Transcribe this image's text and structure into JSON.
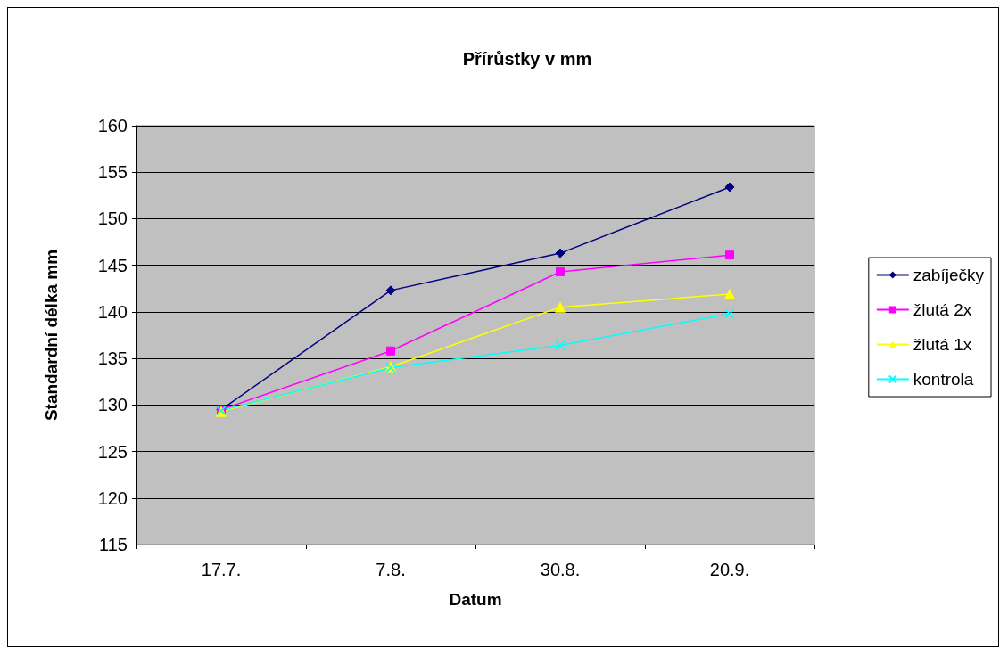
{
  "chart_data": {
    "type": "line",
    "title": "Přírůstky v mm",
    "xlabel": "Datum",
    "ylabel": "Standardní délka mm",
    "categories": [
      "17.7.",
      "7.8.",
      "30.8.",
      "20.9."
    ],
    "ylim": [
      115,
      160
    ],
    "yticks": [
      115,
      120,
      125,
      130,
      135,
      140,
      145,
      150,
      155,
      160
    ],
    "grid": "y",
    "legend": "right",
    "series": [
      {
        "name": "zabíječky",
        "color": "#000080",
        "marker": "diamond",
        "values": [
          129.5,
          142.3,
          146.3,
          153.4
        ]
      },
      {
        "name": "žlutá 2x",
        "color": "#ff00ff",
        "marker": "square",
        "values": [
          129.5,
          135.8,
          144.3,
          146.1
        ]
      },
      {
        "name": "žlutá 1x",
        "color": "#ffff00",
        "marker": "triangle",
        "values": [
          129.3,
          134.1,
          140.5,
          141.9
        ]
      },
      {
        "name": "kontrola",
        "color": "#00ffff",
        "marker": "cross",
        "values": [
          129.4,
          134.0,
          136.4,
          139.8
        ]
      }
    ]
  }
}
